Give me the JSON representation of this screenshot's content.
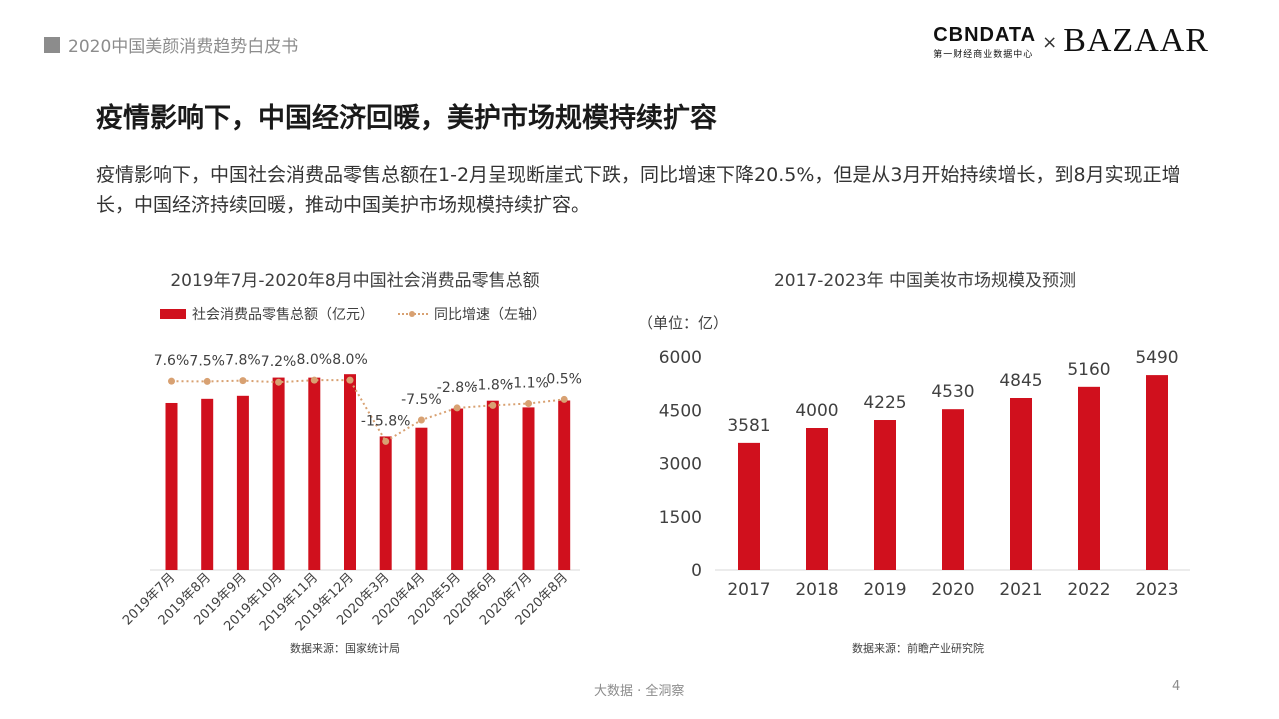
{
  "header": {
    "report_title": "2020中国美颜消费趋势白皮书"
  },
  "logos": {
    "cbn_main": "CBNDATA",
    "cbn_sub": "第一财经商业数据中心",
    "times": "×",
    "bazaar": "BAZAAR"
  },
  "page_title": "疫情影响下，中国经济回暖，美护市场规模持续扩容",
  "subtitle": "疫情影响下，中国社会消费品零售总额在1-2月呈现断崖式下跌，同比增速下降20.5%，但是从3月开始持续增长，到8月实现正增长，中国经济持续回暖，推动中国美护市场规模持续扩容。",
  "colors": {
    "bar": "#d0101d",
    "line": "#d8a172",
    "text": "#404040"
  },
  "chart_data": [
    {
      "type": "bar",
      "title": "2019年7月-2020年8月中国社会消费品零售总额",
      "legend": {
        "bar_label": "社会消费品零售总额（亿元）",
        "line_label": "同比增速（左轴）",
        "placement": "top-left"
      },
      "categories": [
        "2019年7月",
        "2019年8月",
        "2019年9月",
        "2019年10月",
        "2019年11月",
        "2019年12月",
        "2020年3月",
        "2020年4月",
        "2020年5月",
        "2020年6月",
        "2020年7月",
        "2020年8月"
      ],
      "series": [
        {
          "name": "社会消费品零售总额（亿元）",
          "type": "bar",
          "values": [
            33073,
            33896,
            34495,
            38104,
            38094,
            38777,
            26450,
            28178,
            31973,
            33526,
            32203,
            33571
          ]
        },
        {
          "name": "同比增速（左轴）",
          "type": "line",
          "values": [
            7.6,
            7.5,
            7.8,
            7.2,
            8.0,
            8.0,
            -15.8,
            -7.5,
            -2.8,
            -1.8,
            -1.1,
            0.5
          ],
          "labels": [
            "7.6%",
            "7.5%",
            "7.8%",
            "7.2%",
            "8.0%",
            "8.0%",
            "-15.8%",
            "-7.5%",
            "-2.8%",
            "-1.8%",
            "-1.1%",
            "0.5%"
          ]
        }
      ],
      "source": "数据来源：国家统计局"
    },
    {
      "type": "bar",
      "title": "2017-2023年 中国美妆市场规模及预测",
      "unit": "（单位：亿）",
      "categories": [
        "2017",
        "2018",
        "2019",
        "2020",
        "2021",
        "2022",
        "2023"
      ],
      "values": [
        3581,
        4000,
        4225,
        4530,
        4845,
        5160,
        5490
      ],
      "ylim": [
        0,
        6000
      ],
      "yticks": [
        "0",
        "1500",
        "3000",
        "4500",
        "6000"
      ],
      "source": "数据来源：前瞻产业研究院"
    }
  ],
  "footer": {
    "slogan": "大数据 · 全洞察",
    "page_number": "4"
  }
}
